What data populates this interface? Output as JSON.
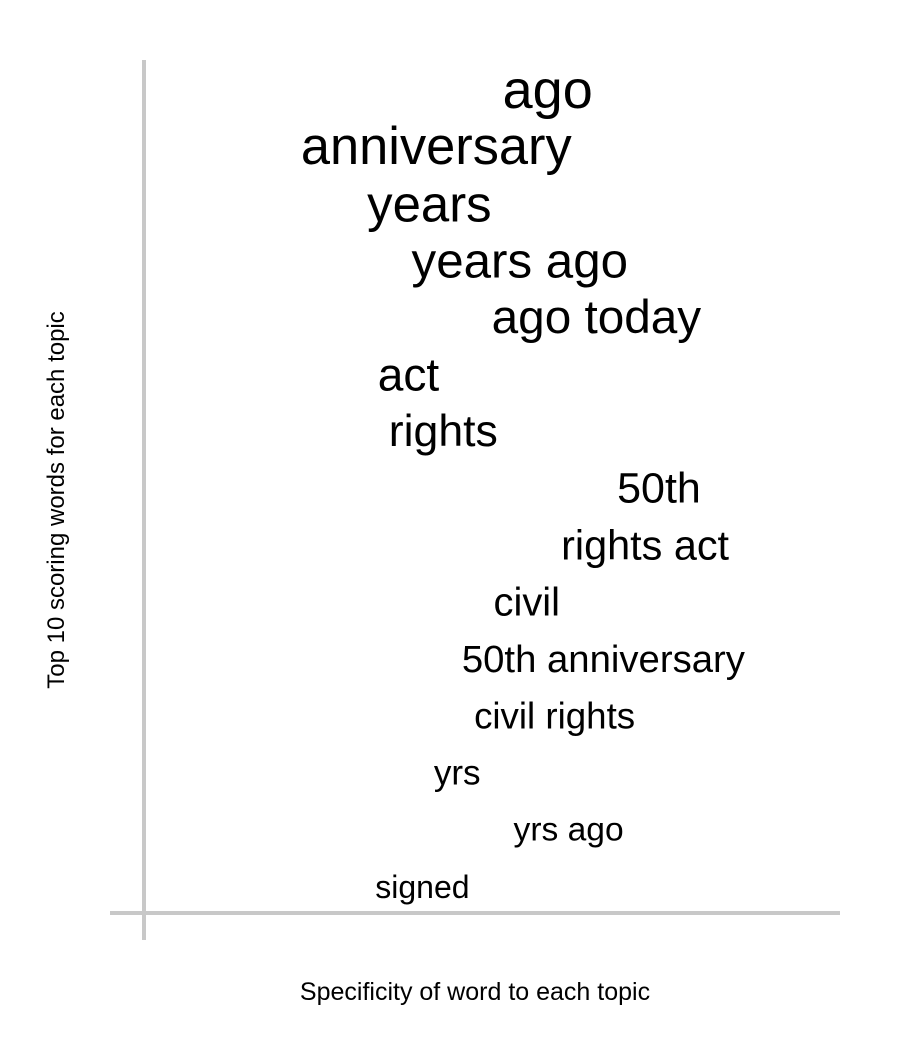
{
  "chart_data": {
    "type": "word-ranking",
    "title": "",
    "xlabel": "Specificity of word to each topic",
    "ylabel": "Top 10 scoring words for each topic",
    "grid": false,
    "axis_color": "#c8c8c8",
    "text_color": "#000000",
    "words": [
      {
        "text": "ago",
        "specificity": 0.58,
        "rank": 1
      },
      {
        "text": "anniversary",
        "specificity": 0.42,
        "rank": 2
      },
      {
        "text": "years",
        "specificity": 0.41,
        "rank": 3
      },
      {
        "text": "years ago",
        "specificity": 0.54,
        "rank": 4
      },
      {
        "text": "ago today",
        "specificity": 0.65,
        "rank": 5
      },
      {
        "text": "act",
        "specificity": 0.38,
        "rank": 6
      },
      {
        "text": "rights",
        "specificity": 0.43,
        "rank": 7
      },
      {
        "text": "50th",
        "specificity": 0.74,
        "rank": 8
      },
      {
        "text": "rights act",
        "specificity": 0.72,
        "rank": 9
      },
      {
        "text": "civil",
        "specificity": 0.55,
        "rank": 10
      },
      {
        "text": "50th anniversary",
        "specificity": 0.66,
        "rank": 11
      },
      {
        "text": "civil rights",
        "specificity": 0.59,
        "rank": 12
      },
      {
        "text": "yrs",
        "specificity": 0.45,
        "rank": 13
      },
      {
        "text": "yrs ago",
        "specificity": 0.61,
        "rank": 14
      },
      {
        "text": "signed",
        "specificity": 0.4,
        "rank": 15
      }
    ]
  }
}
